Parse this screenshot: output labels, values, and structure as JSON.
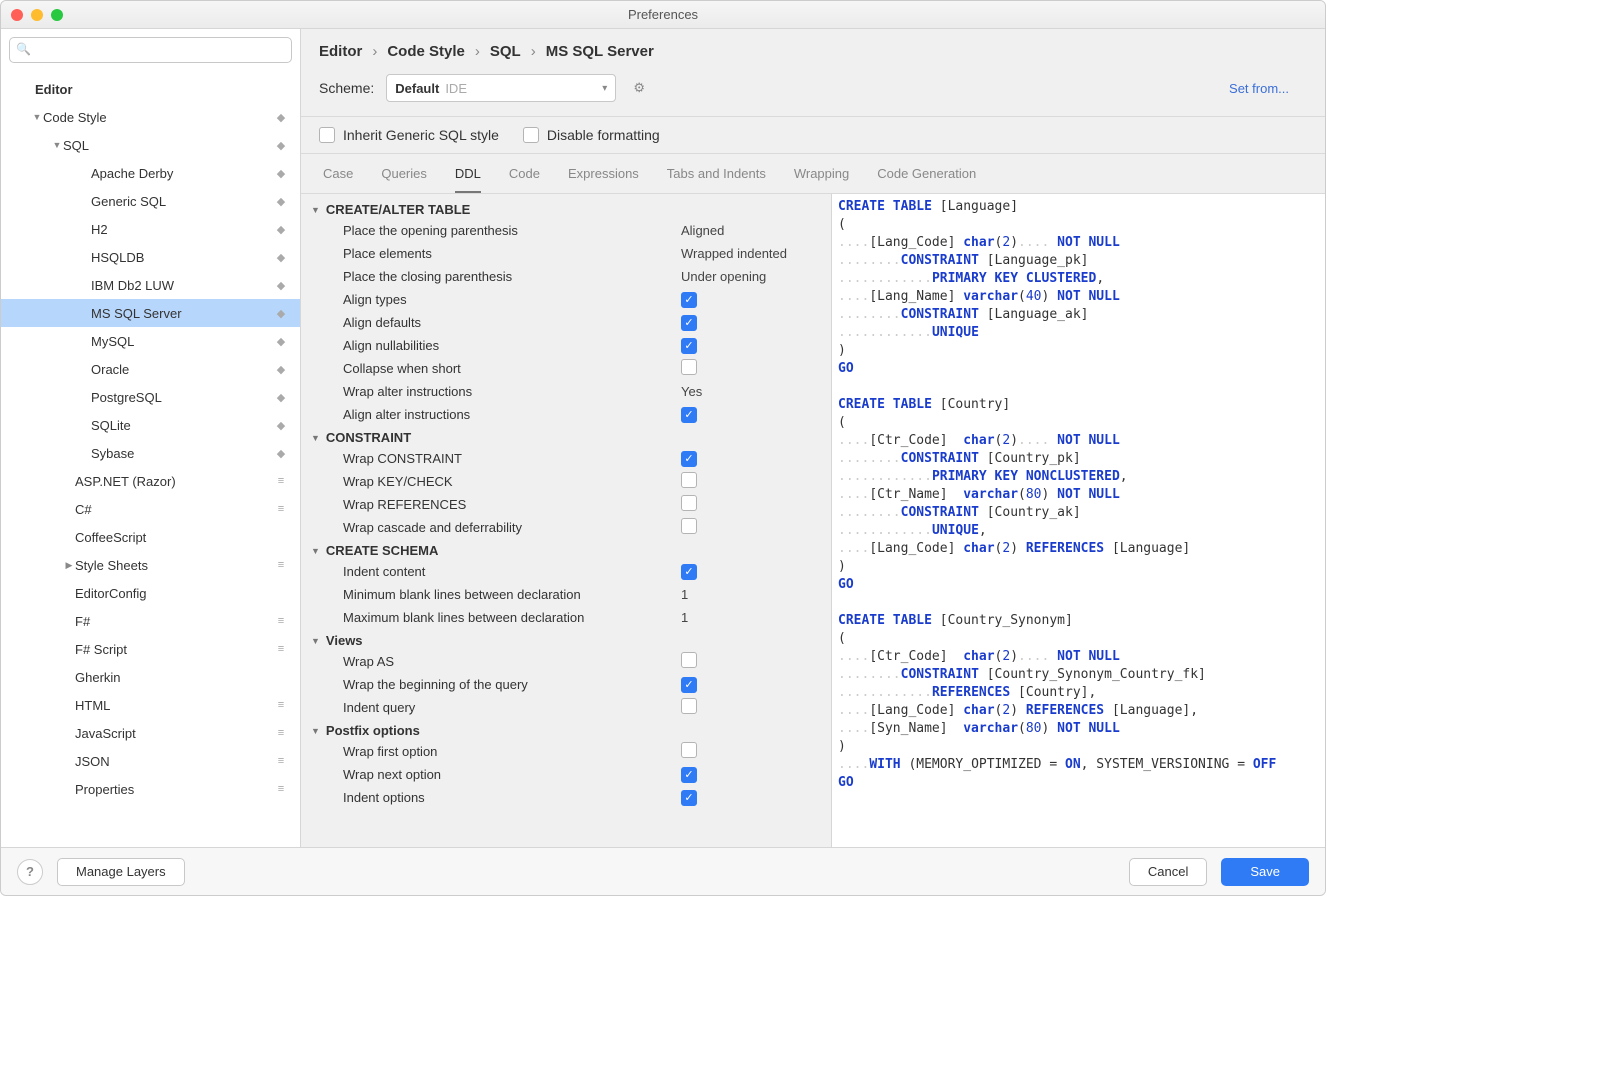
{
  "window": {
    "title": "Preferences"
  },
  "sidebar": {
    "root_label": "Editor",
    "code_style_label": "Code Style",
    "sql_label": "SQL",
    "sql_children": [
      "Apache Derby",
      "Generic SQL",
      "H2",
      "HSQLDB",
      "IBM Db2 LUW",
      "MS SQL Server",
      "MySQL",
      "Oracle",
      "PostgreSQL",
      "SQLite",
      "Sybase"
    ],
    "after_sql": [
      "ASP.NET (Razor)",
      "C#",
      "CoffeeScript",
      "Style Sheets",
      "EditorConfig",
      "F#",
      "F# Script",
      "Gherkin",
      "HTML",
      "JavaScript",
      "JSON",
      "Properties"
    ],
    "selected": "MS SQL Server"
  },
  "breadcrumb": [
    "Editor",
    "Code Style",
    "SQL",
    "MS SQL Server"
  ],
  "scheme": {
    "label": "Scheme:",
    "value": "Default",
    "suffix": "IDE"
  },
  "setfrom": "Set from...",
  "topopts": {
    "inherit": "Inherit Generic SQL style",
    "disable": "Disable formatting"
  },
  "tabs": [
    "Case",
    "Queries",
    "DDL",
    "Code",
    "Expressions",
    "Tabs and Indents",
    "Wrapping",
    "Code Generation"
  ],
  "active_tab": "DDL",
  "sections": [
    {
      "title": "CREATE/ALTER TABLE",
      "rows": [
        {
          "label": "Place the opening parenthesis",
          "value": "Aligned",
          "type": "text"
        },
        {
          "label": "Place elements",
          "value": "Wrapped indented",
          "type": "text"
        },
        {
          "label": "Place the closing parenthesis",
          "value": "Under opening",
          "type": "text"
        },
        {
          "label": "Align types",
          "value": true,
          "type": "check"
        },
        {
          "label": "Align defaults",
          "value": true,
          "type": "check"
        },
        {
          "label": "Align nullabilities",
          "value": true,
          "type": "check"
        },
        {
          "label": "Collapse when short",
          "value": false,
          "type": "check"
        },
        {
          "label": "Wrap alter instructions",
          "value": "Yes",
          "type": "text"
        },
        {
          "label": "Align alter instructions",
          "value": true,
          "type": "check"
        }
      ]
    },
    {
      "title": "CONSTRAINT",
      "rows": [
        {
          "label": "Wrap CONSTRAINT",
          "value": true,
          "type": "check"
        },
        {
          "label": "Wrap KEY/CHECK",
          "value": false,
          "type": "check"
        },
        {
          "label": "Wrap REFERENCES",
          "value": false,
          "type": "check"
        },
        {
          "label": "Wrap cascade and deferrability",
          "value": false,
          "type": "check"
        }
      ]
    },
    {
      "title": "CREATE SCHEMA",
      "rows": [
        {
          "label": "Indent content",
          "value": true,
          "type": "check"
        },
        {
          "label": "Minimum blank lines between declaration",
          "value": "1",
          "type": "text"
        },
        {
          "label": "Maximum blank lines between declaration",
          "value": "1",
          "type": "text"
        }
      ]
    },
    {
      "title": "Views",
      "rows": [
        {
          "label": "Wrap AS",
          "value": false,
          "type": "check"
        },
        {
          "label": "Wrap the beginning of the query",
          "value": true,
          "type": "check"
        },
        {
          "label": "Indent query",
          "value": false,
          "type": "check"
        }
      ]
    },
    {
      "title": "Postfix options",
      "rows": [
        {
          "label": "Wrap first option",
          "value": false,
          "type": "check"
        },
        {
          "label": "Wrap next option",
          "value": true,
          "type": "check"
        },
        {
          "label": "Indent options",
          "value": true,
          "type": "check"
        }
      ]
    }
  ],
  "footer": {
    "manage": "Manage Layers",
    "cancel": "Cancel",
    "save": "Save"
  },
  "colors": {
    "checkbox_on": "#2f7bf6",
    "selection": "#b7d6fb",
    "keyword": "#1a3ccc"
  }
}
